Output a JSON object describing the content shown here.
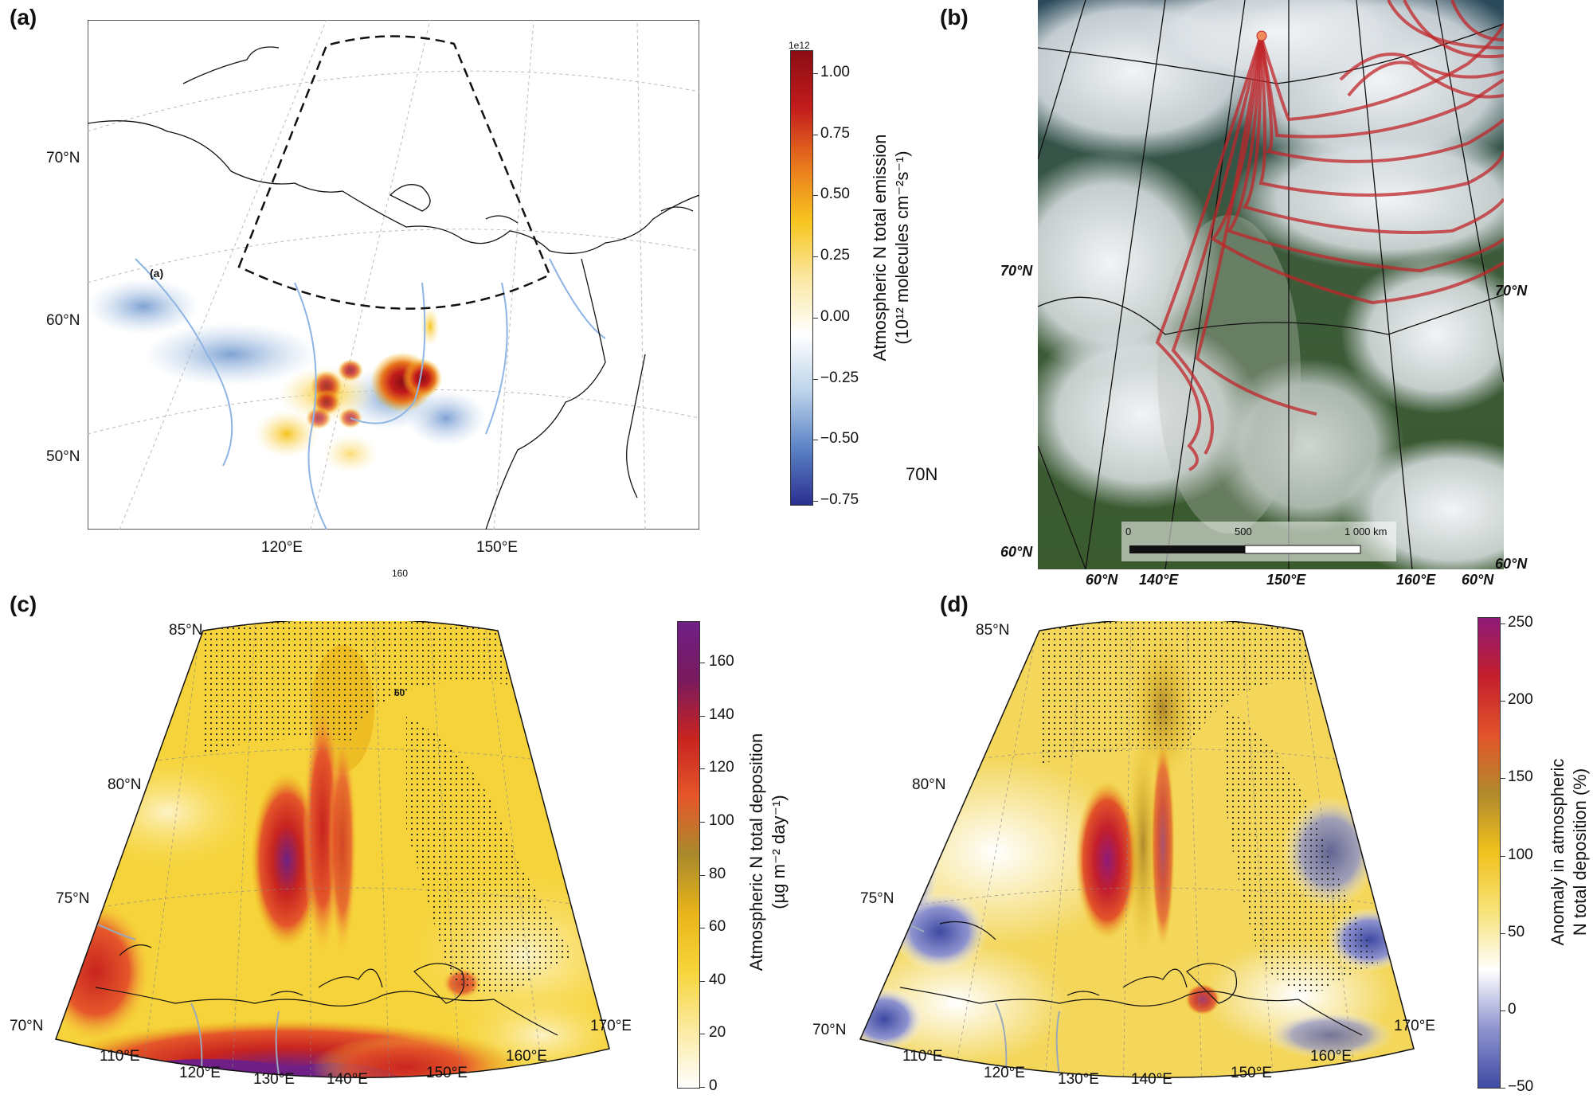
{
  "panels": {
    "a": {
      "label": "(a)",
      "lat_labels": [
        "70°N",
        "60°N",
        "50°N"
      ],
      "lon_labels": [
        "120°E",
        "150°E"
      ],
      "inset_label": "(a)",
      "stray_labels": [
        "70N",
        "160"
      ],
      "colorbar": {
        "exponent": "1e12",
        "ticks": [
          "1.00",
          "0.75",
          "0.50",
          "0.25",
          "0.00",
          "−0.25",
          "−0.50",
          "−0.75"
        ],
        "title_line1": "Atmospheric N total emission",
        "title_line2": "(10¹² molecules cm⁻²s⁻¹)",
        "colors": [
          "#2b2f8f",
          "#5b83c6",
          "#bcd3ea",
          "#ffffff",
          "#fbe7a1",
          "#f7c51e",
          "#e8761d",
          "#c21c1b",
          "#8b0d14"
        ]
      }
    },
    "b": {
      "label": "(b)",
      "lat_labels_left": [
        "70°N",
        "60°N"
      ],
      "lat_labels_right": [
        "70°N",
        "60°N"
      ],
      "bottom_labels": [
        "60°N",
        "140°E",
        "150°E",
        "160°E",
        "60°N"
      ],
      "scalebar": {
        "ticks": [
          "0",
          "500",
          "1 000 km"
        ]
      },
      "trajectory_color": "#c0262a",
      "origin_color": "#f08a5d"
    },
    "c": {
      "label": "(c)",
      "lat_labels": [
        "85°N",
        "80°N",
        "75°N",
        "70°N"
      ],
      "lon_labels": [
        "110°E",
        "120°E",
        "130°E",
        "140°E",
        "150°E",
        "160°E",
        "170°E"
      ],
      "inset_label": "60",
      "colorbar": {
        "ticks": [
          "160",
          "140",
          "120",
          "100",
          "80",
          "60",
          "40",
          "20",
          "0"
        ],
        "title_line1": "Atmospheric N total deposition",
        "title_line2": "(µg m⁻² day⁻¹)",
        "colors": [
          "#ffffff",
          "#fbeaa0",
          "#f7d53a",
          "#e9b41a",
          "#a98a2c",
          "#e5572a",
          "#c8241f",
          "#7a1a5e",
          "#6f1f86"
        ]
      }
    },
    "d": {
      "label": "(d)",
      "lat_labels": [
        "85°N",
        "80°N",
        "75°N",
        "70°N"
      ],
      "lon_labels": [
        "110°E",
        "120°E",
        "130°E",
        "140°E",
        "150°E",
        "160°E",
        "170°E"
      ],
      "colorbar": {
        "ticks": [
          "250",
          "200",
          "150",
          "100",
          "50",
          "0",
          "−50"
        ],
        "title_line1": "Anomaly in atmospheric",
        "title_line2": "N total deposition (%)",
        "colors": [
          "#3f4aa3",
          "#8e93cf",
          "#ffffff",
          "#f8e27a",
          "#f1c21d",
          "#b18a2c",
          "#e2542a",
          "#c41f2c",
          "#8e1a78"
        ]
      }
    }
  }
}
